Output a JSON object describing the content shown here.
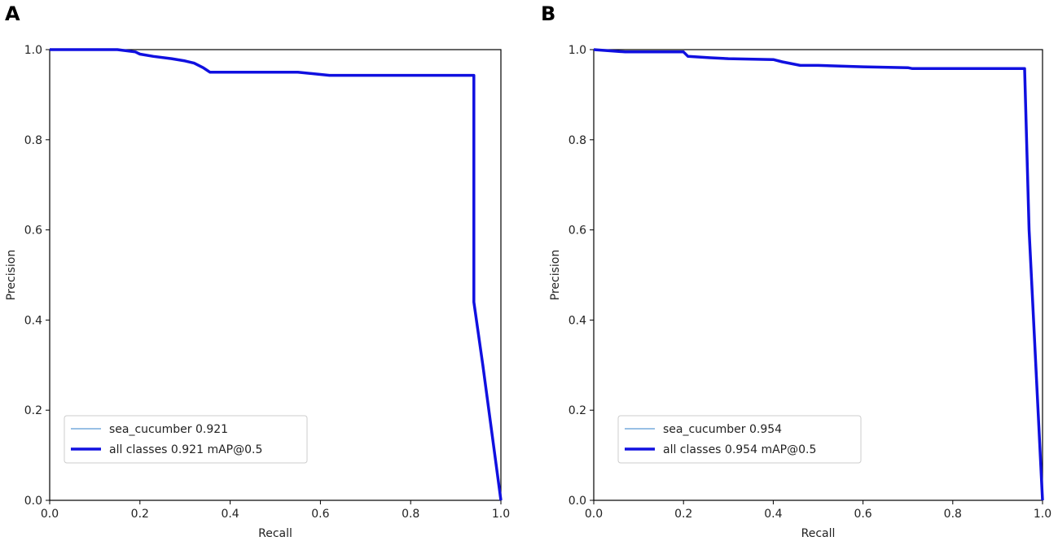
{
  "chart_data": [
    {
      "type": "line",
      "panel_label": "A",
      "xlabel": "Recall",
      "ylabel": "Precision",
      "xlim": [
        0,
        1
      ],
      "ylim": [
        0,
        1
      ],
      "xticks": [
        "0.0",
        "0.2",
        "0.4",
        "0.6",
        "0.8",
        "1.0"
      ],
      "yticks": [
        "0.0",
        "0.2",
        "0.4",
        "0.6",
        "0.8",
        "1.0"
      ],
      "grid": false,
      "legend_position": "lower-left",
      "series": [
        {
          "name": "sea_cucumber 0.921",
          "color": "#5b9bd5",
          "style": "thin",
          "x": [
            0,
            0.15,
            0.19,
            0.2,
            0.23,
            0.27,
            0.3,
            0.32,
            0.34,
            0.355,
            0.45,
            0.55,
            0.6,
            0.62,
            0.7,
            0.8,
            0.9,
            0.94,
            0.94,
            0.96,
            1.0
          ],
          "y": [
            1.0,
            1.0,
            0.995,
            0.99,
            0.985,
            0.98,
            0.975,
            0.97,
            0.96,
            0.95,
            0.95,
            0.95,
            0.945,
            0.943,
            0.943,
            0.943,
            0.943,
            0.943,
            0.44,
            0.3,
            0.0
          ]
        },
        {
          "name": "all classes 0.921 mAP@0.5",
          "color": "#1010e0",
          "style": "thick",
          "x": [
            0,
            0.15,
            0.19,
            0.2,
            0.23,
            0.27,
            0.3,
            0.32,
            0.34,
            0.355,
            0.45,
            0.55,
            0.6,
            0.62,
            0.7,
            0.8,
            0.9,
            0.94,
            0.94,
            0.96,
            1.0
          ],
          "y": [
            1.0,
            1.0,
            0.995,
            0.99,
            0.985,
            0.98,
            0.975,
            0.97,
            0.96,
            0.95,
            0.95,
            0.95,
            0.945,
            0.943,
            0.943,
            0.943,
            0.943,
            0.943,
            0.44,
            0.3,
            0.0
          ]
        }
      ]
    },
    {
      "type": "line",
      "panel_label": "B",
      "xlabel": "Recall",
      "ylabel": "Precision",
      "xlim": [
        0,
        1
      ],
      "ylim": [
        0,
        1
      ],
      "xticks": [
        "0.0",
        "0.2",
        "0.4",
        "0.6",
        "0.8",
        "1.0"
      ],
      "yticks": [
        "0.0",
        "0.2",
        "0.4",
        "0.6",
        "0.8",
        "1.0"
      ],
      "grid": false,
      "legend_position": "lower-left",
      "series": [
        {
          "name": "sea_cucumber 0.954",
          "color": "#5b9bd5",
          "style": "thin",
          "x": [
            0,
            0.07,
            0.2,
            0.21,
            0.26,
            0.3,
            0.4,
            0.42,
            0.46,
            0.5,
            0.6,
            0.7,
            0.71,
            0.8,
            0.9,
            0.96,
            0.97,
            1.0
          ],
          "y": [
            1.0,
            0.995,
            0.995,
            0.985,
            0.982,
            0.98,
            0.978,
            0.973,
            0.965,
            0.965,
            0.962,
            0.96,
            0.958,
            0.958,
            0.958,
            0.958,
            0.6,
            0.0
          ]
        },
        {
          "name": "all classes 0.954 mAP@0.5",
          "color": "#1010e0",
          "style": "thick",
          "x": [
            0,
            0.07,
            0.2,
            0.21,
            0.26,
            0.3,
            0.4,
            0.42,
            0.46,
            0.5,
            0.6,
            0.7,
            0.71,
            0.8,
            0.9,
            0.96,
            0.97,
            1.0
          ],
          "y": [
            1.0,
            0.995,
            0.995,
            0.985,
            0.982,
            0.98,
            0.978,
            0.973,
            0.965,
            0.965,
            0.962,
            0.96,
            0.958,
            0.958,
            0.958,
            0.958,
            0.6,
            0.0
          ]
        }
      ]
    }
  ]
}
